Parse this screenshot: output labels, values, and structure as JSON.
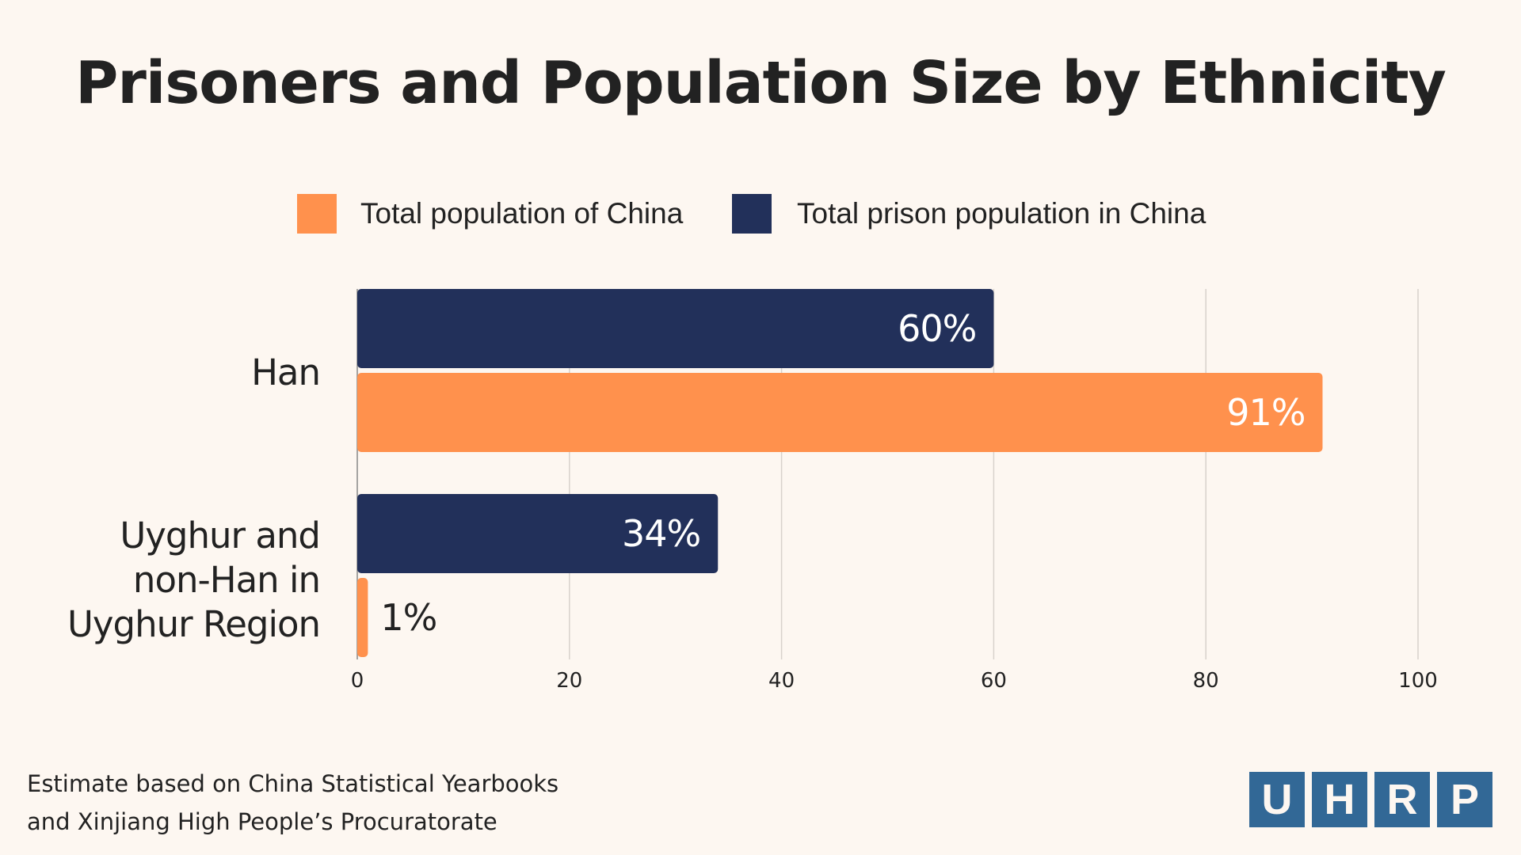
{
  "title": "Prisoners and Population Size by Ethnicity",
  "footer": [
    "Estimate based on China Statistical Yearbooks",
    "and Xinjiang High People’s Procuratorate"
  ],
  "logo": [
    "U",
    "H",
    "R",
    "P"
  ],
  "colors": {
    "background": "#fdf7f1",
    "orange": "#ff914d",
    "navy": "#22305a",
    "logo": "#326896"
  },
  "chart_data": {
    "type": "bar",
    "orientation": "horizontal",
    "categories": [
      "Han",
      "Uyghur and non-Han in Uyghur Region"
    ],
    "category_lines": [
      [
        "Han"
      ],
      [
        "Uyghur and",
        "non-Han in",
        "Uyghur Region"
      ]
    ],
    "series": [
      {
        "name": "Total prison population in China",
        "color": "#22305a",
        "values": [
          60,
          34
        ],
        "labels": [
          "60%",
          "34%"
        ]
      },
      {
        "name": "Total population of China",
        "color": "#ff914d",
        "values": [
          91,
          1
        ],
        "labels": [
          "91%",
          "1%"
        ]
      }
    ],
    "legend": [
      {
        "name": "Total population of China",
        "color": "#ff914d"
      },
      {
        "name": "Total prison population in China",
        "color": "#22305a"
      }
    ],
    "legend_placement": "top",
    "xlim": [
      0,
      100
    ],
    "xticks": [
      0,
      20,
      40,
      60,
      80,
      100
    ],
    "grid": true
  }
}
